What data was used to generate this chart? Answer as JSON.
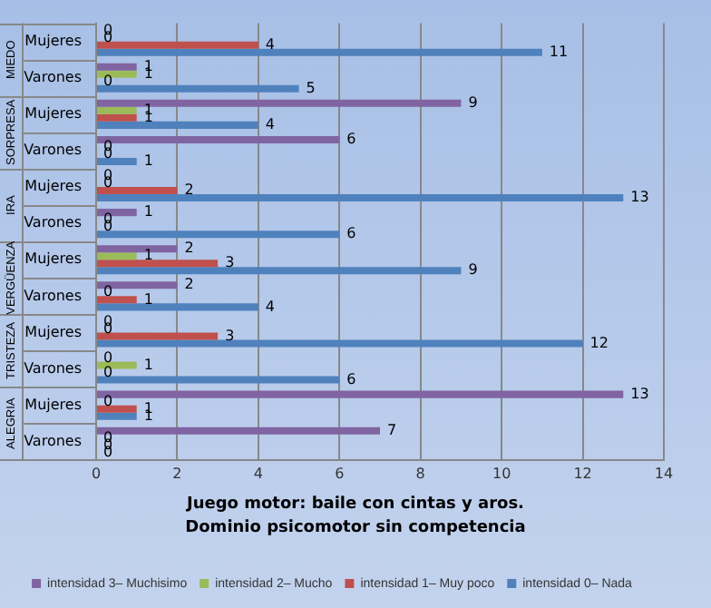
{
  "chart_data": {
    "type": "bar",
    "orientation": "horizontal",
    "title": "Juego motor: baile con cintas y aros.\nDominio psicomotor sin competencia",
    "categories": [
      "Mujeres",
      "Varones",
      "Mujeres",
      "Varones",
      "Mujeres",
      "Varones",
      "Mujeres",
      "Varones",
      "Mujeres",
      "Varones",
      "Mujeres",
      "Varones"
    ],
    "annotations": [
      "MIEDO",
      "SORPRESA",
      "IRA",
      "VERGÜENZA",
      "TRISTEZA",
      "ALEGRIA"
    ],
    "series": [
      {
        "name": "intensidad 3– Muchisimo",
        "color": "#8064a2",
        "values": [
          0,
          1,
          9,
          6,
          0,
          1,
          2,
          2,
          0,
          0,
          13,
          7
        ]
      },
      {
        "name": "intensidad 2– Mucho",
        "color": "#9bbb59",
        "values": [
          0,
          1,
          1,
          0,
          0,
          0,
          1,
          0,
          0,
          1,
          0,
          0
        ]
      },
      {
        "name": "intensidad 1– Muy poco",
        "color": "#c0504d",
        "values": [
          4,
          0,
          1,
          0,
          2,
          0,
          3,
          1,
          3,
          0,
          1,
          0
        ]
      },
      {
        "name": "intensidad 0– Nada",
        "color": "#4f81bd",
        "values": [
          11,
          5,
          4,
          1,
          13,
          6,
          9,
          4,
          12,
          6,
          1,
          0
        ]
      }
    ],
    "xlim": [
      0,
      14
    ],
    "xticks": [
      0,
      2,
      4,
      6,
      8,
      10,
      12,
      14
    ],
    "grid": "x",
    "legend": "bottom",
    "data_labels": true
  }
}
